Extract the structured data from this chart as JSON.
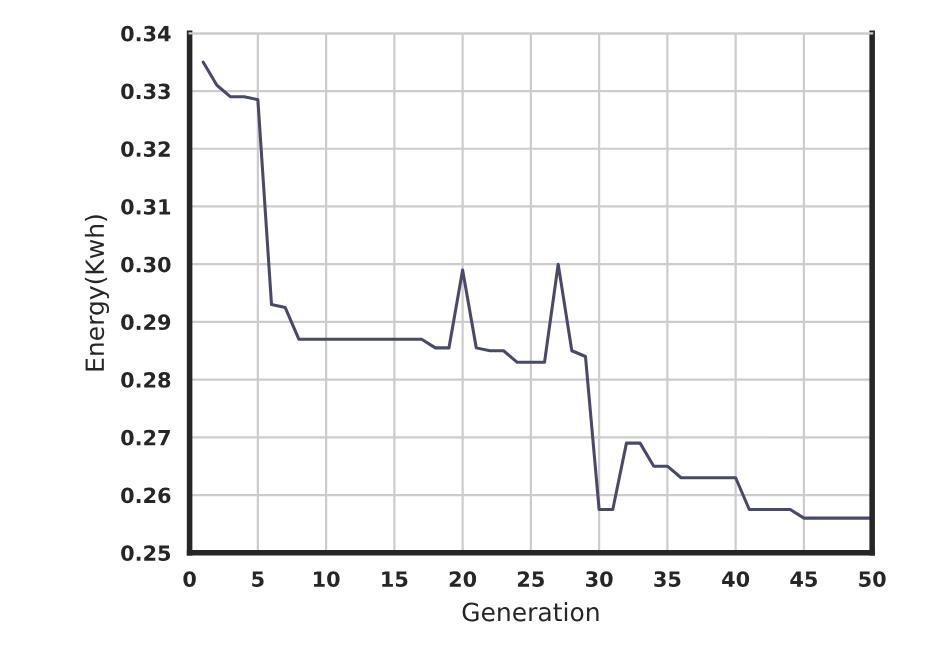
{
  "chart_data": {
    "type": "line",
    "xlabel": "Generation",
    "ylabel": "Energy(Kwh)",
    "x": [
      1,
      2,
      3,
      4,
      5,
      6,
      7,
      8,
      9,
      10,
      11,
      12,
      13,
      14,
      15,
      16,
      17,
      18,
      19,
      20,
      21,
      22,
      23,
      24,
      25,
      26,
      27,
      28,
      29,
      30,
      31,
      32,
      33,
      34,
      35,
      36,
      37,
      38,
      39,
      40,
      41,
      42,
      43,
      44,
      45,
      46,
      47,
      48,
      49,
      50
    ],
    "series": [
      {
        "color": "#4a4a68",
        "values": [
          0.335,
          0.331,
          0.329,
          0.329,
          0.3285,
          0.293,
          0.2925,
          0.287,
          0.287,
          0.287,
          0.287,
          0.287,
          0.287,
          0.287,
          0.287,
          0.287,
          0.287,
          0.2855,
          0.2855,
          0.299,
          0.2855,
          0.285,
          0.285,
          0.283,
          0.283,
          0.283,
          0.3,
          0.285,
          0.284,
          0.2575,
          0.2575,
          0.269,
          0.269,
          0.265,
          0.265,
          0.263,
          0.263,
          0.263,
          0.263,
          0.263,
          0.2575,
          0.2575,
          0.2575,
          0.2575,
          0.256,
          0.256,
          0.256,
          0.256,
          0.256,
          0.256
        ]
      }
    ],
    "xlim": [
      0,
      50
    ],
    "xticks": [
      0,
      5,
      10,
      15,
      20,
      25,
      30,
      35,
      40,
      45,
      50
    ],
    "ylim": [
      0.25,
      0.34
    ],
    "yticks": [
      0.25,
      0.26,
      0.27,
      0.28,
      0.29,
      {
        "value": 0.3,
        "label": "0.30"
      },
      0.31,
      0.32,
      0.33,
      0.34
    ],
    "grid": true,
    "marker": "none",
    "line_style": "solid",
    "legend": false
  }
}
